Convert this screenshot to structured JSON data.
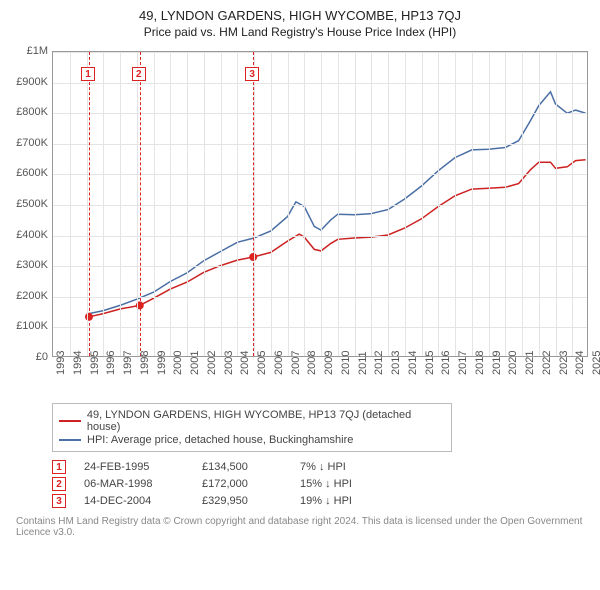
{
  "title": "49, LYNDON GARDENS, HIGH WYCOMBE, HP13 7QJ",
  "subtitle": "Price paid vs. HM Land Registry's House Price Index (HPI)",
  "chart": {
    "type": "line",
    "background_color": "#ffffff",
    "grid_color": "#e4e4e4",
    "ylim": [
      0,
      1000000
    ],
    "ytick_step": 100000,
    "yticks": [
      "£0",
      "£100K",
      "£200K",
      "£300K",
      "£400K",
      "£500K",
      "£600K",
      "£700K",
      "£800K",
      "£900K",
      "£1M"
    ],
    "xlim": [
      1993,
      2025
    ],
    "xticks": [
      1993,
      1994,
      1995,
      1996,
      1997,
      1998,
      1999,
      2000,
      2001,
      2002,
      2003,
      2004,
      2005,
      2006,
      2007,
      2008,
      2009,
      2010,
      2011,
      2012,
      2013,
      2014,
      2015,
      2016,
      2017,
      2018,
      2019,
      2020,
      2021,
      2022,
      2023,
      2024,
      2025
    ],
    "series": [
      {
        "name": "price_paid",
        "label": "49, LYNDON GARDENS, HIGH WYCOMBE, HP13 7QJ (detached house)",
        "color": "#cc2222",
        "line_width": 1.6,
        "data": [
          [
            1995.15,
            134500
          ],
          [
            1996,
            145000
          ],
          [
            1997,
            160000
          ],
          [
            1998.18,
            172000
          ],
          [
            1999,
            195000
          ],
          [
            2000,
            225000
          ],
          [
            2001,
            248000
          ],
          [
            2002,
            280000
          ],
          [
            2003,
            302000
          ],
          [
            2004,
            320000
          ],
          [
            2004.95,
            329950
          ],
          [
            2006,
            345000
          ],
          [
            2007,
            382000
          ],
          [
            2007.7,
            405000
          ],
          [
            2008,
            395000
          ],
          [
            2008.6,
            355000
          ],
          [
            2009,
            350000
          ],
          [
            2009.6,
            375000
          ],
          [
            2010,
            388000
          ],
          [
            2011,
            392000
          ],
          [
            2012,
            395000
          ],
          [
            2013,
            402000
          ],
          [
            2014,
            425000
          ],
          [
            2015,
            455000
          ],
          [
            2016,
            495000
          ],
          [
            2017,
            530000
          ],
          [
            2018,
            552000
          ],
          [
            2019,
            555000
          ],
          [
            2020,
            558000
          ],
          [
            2020.8,
            570000
          ],
          [
            2021.5,
            615000
          ],
          [
            2022,
            640000
          ],
          [
            2022.7,
            640000
          ],
          [
            2023,
            620000
          ],
          [
            2023.7,
            625000
          ],
          [
            2024.2,
            645000
          ],
          [
            2024.8,
            648000
          ]
        ]
      },
      {
        "name": "hpi",
        "label": "HPI: Average price, detached house, Buckinghamshire",
        "color": "#4a6fa5",
        "line_width": 1.3,
        "data": [
          [
            1995.15,
            145000
          ],
          [
            1996,
            155000
          ],
          [
            1997,
            172000
          ],
          [
            1998,
            192000
          ],
          [
            1999,
            215000
          ],
          [
            2000,
            250000
          ],
          [
            2001,
            278000
          ],
          [
            2002,
            318000
          ],
          [
            2003,
            348000
          ],
          [
            2004,
            378000
          ],
          [
            2005,
            392000
          ],
          [
            2006,
            415000
          ],
          [
            2007,
            462000
          ],
          [
            2007.5,
            510000
          ],
          [
            2008,
            495000
          ],
          [
            2008.6,
            430000
          ],
          [
            2009,
            418000
          ],
          [
            2009.6,
            452000
          ],
          [
            2010,
            470000
          ],
          [
            2011,
            468000
          ],
          [
            2012,
            472000
          ],
          [
            2013,
            485000
          ],
          [
            2014,
            520000
          ],
          [
            2015,
            562000
          ],
          [
            2016,
            612000
          ],
          [
            2017,
            655000
          ],
          [
            2018,
            680000
          ],
          [
            2019,
            682000
          ],
          [
            2020,
            688000
          ],
          [
            2020.8,
            710000
          ],
          [
            2021.5,
            775000
          ],
          [
            2022,
            825000
          ],
          [
            2022.7,
            870000
          ],
          [
            2023,
            830000
          ],
          [
            2023.7,
            800000
          ],
          [
            2024.2,
            810000
          ],
          [
            2024.8,
            800000
          ]
        ]
      }
    ],
    "markers": [
      {
        "n": "1",
        "year": 1995.15,
        "color": "#d22"
      },
      {
        "n": "2",
        "year": 1998.18,
        "color": "#d22"
      },
      {
        "n": "3",
        "year": 2004.95,
        "color": "#d22"
      }
    ],
    "points": [
      {
        "year": 1995.15,
        "value": 134500,
        "color": "#d22"
      },
      {
        "year": 1998.18,
        "value": 172000,
        "color": "#d22"
      },
      {
        "year": 2004.95,
        "value": 329950,
        "color": "#d22"
      }
    ]
  },
  "legend": {
    "items": [
      {
        "color": "#cc2222",
        "label": "49, LYNDON GARDENS, HIGH WYCOMBE, HP13 7QJ (detached house)"
      },
      {
        "color": "#4a6fa5",
        "label": "HPI: Average price, detached house, Buckinghamshire"
      }
    ]
  },
  "transactions": [
    {
      "n": "1",
      "date": "24-FEB-1995",
      "price": "£134,500",
      "diff": "7% ↓ HPI"
    },
    {
      "n": "2",
      "date": "06-MAR-1998",
      "price": "£172,000",
      "diff": "15% ↓ HPI"
    },
    {
      "n": "3",
      "date": "14-DEC-2004",
      "price": "£329,950",
      "diff": "19% ↓ HPI"
    }
  ],
  "credit": "Contains HM Land Registry data © Crown copyright and database right 2024. This data is licensed under the Open Government Licence v3.0."
}
